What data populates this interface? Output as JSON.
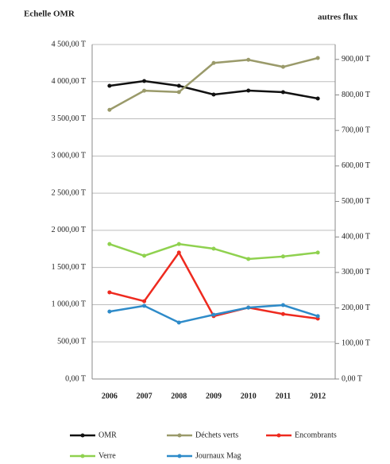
{
  "chart_data": {
    "type": "line",
    "y_label": "Echelle OMR",
    "y2_label": "autres flux",
    "categories": [
      "2006",
      "2007",
      "2008",
      "2009",
      "2010",
      "2011",
      "2012"
    ],
    "series": [
      {
        "name": "OMR",
        "color": "#111111",
        "values": [
          3944,
          4008,
          3944,
          3827,
          3880,
          3859,
          3773
        ]
      },
      {
        "name": "Déchets verts",
        "color": "#9a9a6a",
        "axis": "y2",
        "values": [
          758,
          812,
          808,
          890,
          899,
          879,
          904
        ]
      },
      {
        "name": "Encombrants",
        "color": "#ee2a1f",
        "axis": "y2",
        "values": [
          244,
          219,
          356,
          177,
          201,
          183,
          170
        ]
      },
      {
        "name": "Verre",
        "color": "#8fd14f",
        "axis": "y2",
        "values": [
          380,
          347,
          380,
          367,
          338,
          345,
          356
        ]
      },
      {
        "name": "Journaux Mag",
        "color": "#2e8bc9",
        "axis": "y2",
        "values": [
          190,
          206,
          159,
          181,
          201,
          208,
          177
        ]
      }
    ],
    "ylim": [
      0,
      4500
    ],
    "yticks": [
      {
        "value": 0,
        "label": "0,00 T"
      },
      {
        "value": 500,
        "label": "500,00 T"
      },
      {
        "value": 1000,
        "label": "1 000,00 T"
      },
      {
        "value": 1500,
        "label": "1 500,00 T"
      },
      {
        "value": 2000,
        "label": "2 000,00 T"
      },
      {
        "value": 2500,
        "label": "2 500,00 T"
      },
      {
        "value": 3000,
        "label": "3 000,00 T"
      },
      {
        "value": 3500,
        "label": "3 500,00 T"
      },
      {
        "value": 4000,
        "label": "4 000,00 T"
      },
      {
        "value": 4500,
        "label": "4 500,00 T"
      }
    ],
    "y2lim": [
      0,
      942
    ],
    "y2ticks": [
      {
        "value": 0,
        "label": "0,00 T"
      },
      {
        "value": 100,
        "label": "100,00 T"
      },
      {
        "value": 200,
        "label": "200,00 T"
      },
      {
        "value": 300,
        "label": "300,00 T"
      },
      {
        "value": 400,
        "label": "400,00 T"
      },
      {
        "value": 500,
        "label": "500,00 T"
      },
      {
        "value": 600,
        "label": "600,00 T"
      },
      {
        "value": 700,
        "label": "700,00 T"
      },
      {
        "value": 800,
        "label": "800,00 T"
      },
      {
        "value": 900,
        "label": "900,00 T"
      }
    ],
    "grid": true
  }
}
